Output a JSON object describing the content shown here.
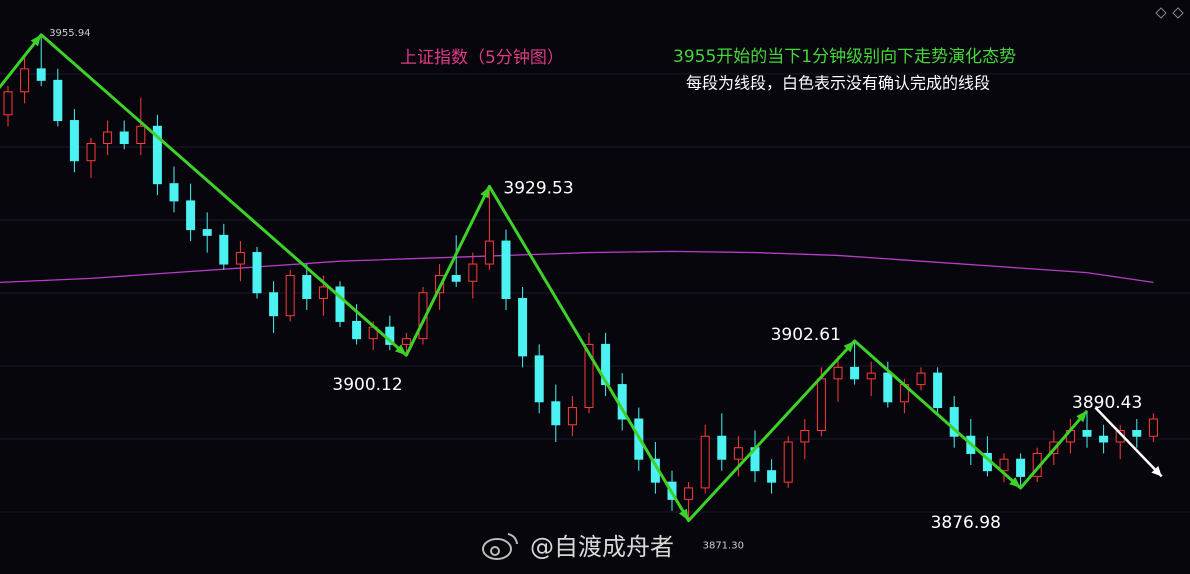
{
  "chart_data": {
    "type": "candlestick",
    "title": "上证指数（5分钟图）",
    "subtitle": "3955开始的当下1分钟级别向下走势演化态势",
    "note": "每段为线段，白色表示没有确认完成的线段",
    "watermark": "@自渡成舟者",
    "ylim": [
      3862,
      3962
    ],
    "up_color": "#ff3b3b",
    "down_color": "#4cf2f2",
    "open": [
      3942,
      3946,
      3950,
      3948,
      3941,
      3934,
      3937,
      3939,
      3937,
      3940,
      3930,
      3927,
      3922,
      3921,
      3916,
      3918,
      3911,
      3907,
      3914,
      3910,
      3912,
      3906,
      3903,
      3905,
      3902,
      3903,
      3911,
      3914,
      3913,
      3916,
      3920,
      3910,
      3900,
      3892,
      3888,
      3891,
      3902,
      3895,
      3889,
      3882,
      3878,
      3875,
      3877,
      3886,
      3882,
      3884,
      3880,
      3878,
      3885,
      3887,
      3896,
      3898,
      3896,
      3897,
      3892,
      3895,
      3897,
      3891,
      3886,
      3883,
      3880,
      3882,
      3879,
      3883,
      3885,
      3887,
      3886,
      3885,
      3887,
      3886
    ],
    "high": [
      3947,
      3952,
      3955.94,
      3950,
      3943,
      3938,
      3941,
      3941,
      3945,
      3942,
      3933,
      3930,
      3925,
      3923,
      3920,
      3919,
      3913,
      3915,
      3916,
      3914,
      3913,
      3909,
      3906,
      3907,
      3904,
      3912,
      3916,
      3921,
      3918,
      3929.53,
      3922,
      3912,
      3902,
      3895,
      3893,
      3904,
      3904,
      3897,
      3891,
      3885,
      3880,
      3878,
      3888,
      3890,
      3886,
      3887,
      3882,
      3886,
      3889,
      3898,
      3900,
      3902.61,
      3899,
      3899,
      3896,
      3898,
      3898,
      3893,
      3889,
      3886,
      3883,
      3883,
      3884,
      3887,
      3889,
      3890.43,
      3888,
      3888,
      3889,
      3890
    ],
    "low": [
      3940,
      3944,
      3947,
      3940,
      3932,
      3931,
      3935,
      3936,
      3935,
      3928,
      3925,
      3920,
      3918,
      3915,
      3913,
      3910,
      3904,
      3906,
      3908,
      3907,
      3905,
      3902,
      3901,
      3901,
      3900.12,
      3902,
      3908,
      3912,
      3910,
      3915,
      3908,
      3898,
      3890,
      3885,
      3886,
      3890,
      3893,
      3887,
      3880,
      3876,
      3873,
      3871.3,
      3876,
      3880,
      3879,
      3878,
      3876,
      3877,
      3882,
      3886,
      3892,
      3895,
      3893,
      3891,
      3890,
      3894,
      3890,
      3884,
      3881,
      3879,
      3878,
      3876.98,
      3878,
      3881,
      3883,
      3884,
      3883,
      3882,
      3884,
      3885
    ],
    "close": [
      3946,
      3950,
      3948,
      3941,
      3934,
      3937,
      3939,
      3937,
      3940,
      3930,
      3927,
      3922,
      3921,
      3916,
      3918,
      3911,
      3907,
      3914,
      3910,
      3912,
      3906,
      3903,
      3905,
      3902,
      3903,
      3911,
      3914,
      3913,
      3916,
      3920,
      3910,
      3900,
      3892,
      3888,
      3891,
      3902,
      3895,
      3889,
      3882,
      3878,
      3875,
      3877,
      3886,
      3882,
      3884,
      3880,
      3878,
      3885,
      3887,
      3896,
      3898,
      3896,
      3897,
      3892,
      3895,
      3897,
      3891,
      3886,
      3883,
      3880,
      3882,
      3879,
      3883,
      3885,
      3887,
      3886,
      3885,
      3887,
      3886,
      3889
    ],
    "lines": [
      {
        "color": "#b83cc8",
        "x": [
          -0.5,
          5,
          10,
          15,
          20,
          25,
          30,
          35,
          40,
          45,
          50,
          55,
          60,
          65,
          69
        ],
        "values": [
          3912.8,
          3913.5,
          3914.5,
          3915.5,
          3916.5,
          3917,
          3917.5,
          3918,
          3918.2,
          3918,
          3917.5,
          3916.5,
          3915.5,
          3914.5,
          3912.8
        ]
      }
    ],
    "segments": {
      "color": "#3ed12a",
      "x": [
        -1,
        2,
        24,
        29,
        41,
        51,
        61,
        65
      ],
      "values": [
        3945,
        3955.94,
        3900.12,
        3929.53,
        3871.3,
        3902.61,
        3876.98,
        3890.43
      ],
      "value_labels": [
        null,
        "3955.94",
        "3900.12",
        "3929.53",
        "3871.30",
        "3902.61",
        "3876.98",
        "3890.43"
      ]
    },
    "pending": {
      "color": "#ffffff",
      "x": [
        65.5,
        69.5
      ],
      "values": [
        3891,
        3879
      ]
    }
  }
}
